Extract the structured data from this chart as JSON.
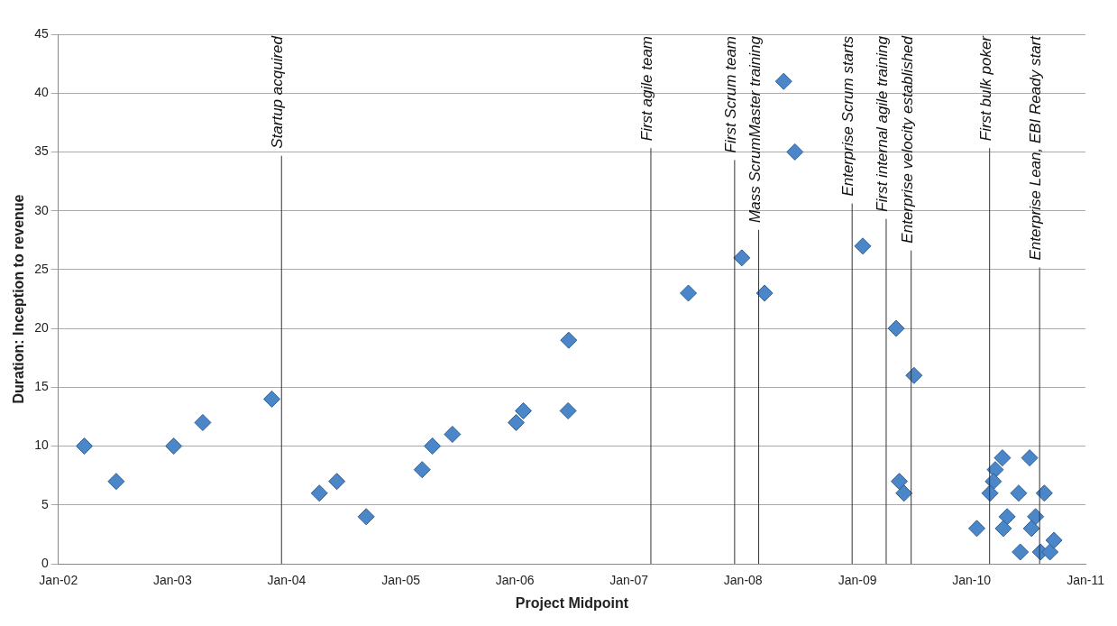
{
  "chart_data": {
    "type": "scatter",
    "xlabel": "Project Midpoint",
    "ylabel": "Duration: Inception to revenue",
    "x": [
      "2002-03-25",
      "2002-07-05",
      "2003-01-05",
      "2003-04-08",
      "2003-11-15",
      "2004-04-15",
      "2004-06-10",
      "2004-09-12",
      "2005-03-10",
      "2005-04-12",
      "2005-06-15",
      "2006-01-05",
      "2006-01-28",
      "2006-06-22",
      "2006-06-20",
      "2007-07-10",
      "2007-12-28",
      "2008-03-10",
      "2008-05-10",
      "2008-06-15",
      "2009-01-18",
      "2009-05-05",
      "2009-05-15",
      "2009-05-30",
      "2009-07-01",
      "2010-01-18",
      "2010-04-10",
      "2010-07-06",
      "2010-03-18",
      "2010-03-12",
      "2010-03-01",
      "2010-06-01",
      "2010-08-22",
      "2010-04-25",
      "2010-07-25",
      "2010-04-13",
      "2010-07-12",
      "2010-06-06",
      "2010-08-10",
      "2010-09-09",
      "2010-09-22"
    ],
    "values": [
      10,
      7,
      10,
      12,
      14,
      6,
      7,
      4,
      8,
      10,
      11,
      12,
      13,
      19,
      13,
      23,
      26,
      23,
      41,
      35,
      27,
      20,
      7,
      6,
      16,
      3,
      9,
      9,
      8,
      7,
      6,
      6,
      6,
      4,
      4,
      3,
      3,
      1,
      1,
      1,
      2
    ],
    "color": "#4a86c8",
    "marker": "diamond",
    "grid": "y",
    "legend": false,
    "xlim": [
      "2002-01-01",
      "2011-01-01"
    ],
    "xticks": [
      {
        "value": "2002-01-01",
        "label": "Jan-02"
      },
      {
        "value": "2003-01-01",
        "label": "Jan-03"
      },
      {
        "value": "2004-01-01",
        "label": "Jan-04"
      },
      {
        "value": "2005-01-01",
        "label": "Jan-05"
      },
      {
        "value": "2006-01-01",
        "label": "Jan-06"
      },
      {
        "value": "2007-01-01",
        "label": "Jan-07"
      },
      {
        "value": "2008-01-01",
        "label": "Jan-08"
      },
      {
        "value": "2009-01-01",
        "label": "Jan-09"
      },
      {
        "value": "2010-01-01",
        "label": "Jan-10"
      },
      {
        "value": "2011-01-01",
        "label": "Jan-11"
      }
    ],
    "ylim": [
      0,
      45
    ],
    "yticks": [
      0,
      5,
      10,
      15,
      20,
      25,
      30,
      35,
      40,
      45
    ],
    "ref_lines": [
      {
        "axis": "x",
        "value": "2003-12-16",
        "label": "Startup acquired"
      },
      {
        "axis": "x",
        "value": "2007-03-12",
        "label": "First agile team"
      },
      {
        "axis": "x",
        "value": "2007-12-05",
        "label": "First Scrum team"
      },
      {
        "axis": "x",
        "value": "2008-02-20",
        "label": "Mass ScrumMaster training"
      },
      {
        "axis": "x",
        "value": "2008-12-15",
        "label": "Enterprise Scrum starts"
      },
      {
        "axis": "x",
        "value": "2009-04-03",
        "label": "First internal agile training"
      },
      {
        "axis": "x",
        "value": "2009-06-22",
        "label": "Enterprise velocity established"
      },
      {
        "axis": "x",
        "value": "2010-02-28",
        "label": "First bulk poker"
      },
      {
        "axis": "x",
        "value": "2010-08-07",
        "label": "Enterprise Lean, EBI Ready start"
      }
    ]
  }
}
